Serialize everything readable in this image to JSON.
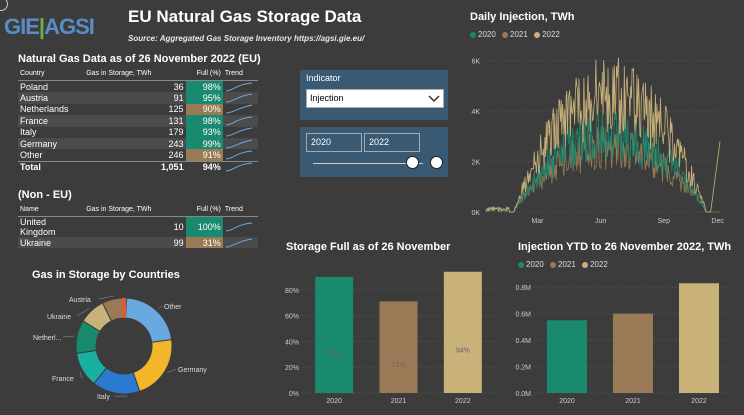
{
  "header": {
    "logo": "GIE AGSI",
    "logo_left": "GIE",
    "logo_sep": "|",
    "logo_right": "AGSI",
    "title": "EU Natural Gas Storage Data",
    "subtitle": "Source: Aggregated Gas Storage Inventory https://agsi.gie.eu/"
  },
  "eu_table": {
    "title": "Natural Gas Data as of 26 November 2022 (EU)",
    "headers": {
      "country": "Country",
      "gas": "Gas in Storage, TWh",
      "full": "Full (%)",
      "trend": "Trend"
    },
    "rows": [
      {
        "country": "Poland",
        "gas": "36",
        "full": "98%",
        "fullv": 98
      },
      {
        "country": "Austria",
        "gas": "91",
        "full": "95%",
        "fullv": 95
      },
      {
        "country": "Netherlands",
        "gas": "125",
        "full": "90%",
        "fullv": 90
      },
      {
        "country": "France",
        "gas": "131",
        "full": "98%",
        "fullv": 98
      },
      {
        "country": "Italy",
        "gas": "179",
        "full": "93%",
        "fullv": 93
      },
      {
        "country": "Germany",
        "gas": "243",
        "full": "99%",
        "fullv": 99
      },
      {
        "country": "Other",
        "gas": "246",
        "full": "91%",
        "fullv": 91
      }
    ],
    "total": {
      "label": "Total",
      "gas": "1,051",
      "full": "94%"
    }
  },
  "noneu_table": {
    "title": "(Non - EU)",
    "headers": {
      "name": "Name",
      "gas": "Gas in Storage, TWh",
      "full": "Full (%)",
      "trend": "Trend"
    },
    "rows": [
      {
        "country": "United Kingdom",
        "gas": "10",
        "full": "100%",
        "fullv": 100
      },
      {
        "country": "Ukraine",
        "gas": "99",
        "full": "31%",
        "fullv": 31
      }
    ]
  },
  "colors": {
    "green": "#1a8a6e",
    "brown": "#9a7a56",
    "tan": "#c9b27a",
    "slicer_bg": "#3a5a73"
  },
  "indicator": {
    "label": "Indicator",
    "value": "Injection"
  },
  "year_slicer": {
    "from": "2020",
    "to": "2022"
  },
  "chart_data": [
    {
      "type": "line",
      "title": "Daily Injection, TWh",
      "series": [
        {
          "name": "2020"
        },
        {
          "name": "2021"
        },
        {
          "name": "2022"
        }
      ],
      "x_ticks": [
        "Mar",
        "Jun",
        "Sep",
        "Dec"
      ],
      "y_ticks": [
        "0K",
        "2K",
        "4K",
        "6K"
      ],
      "ylim": [
        0,
        6500
      ]
    },
    {
      "type": "pie",
      "title": "Gas in Storage by Countries",
      "categories": [
        "Other",
        "Germany",
        "Italy",
        "France",
        "Netherl...",
        "Ukraine",
        "Austria"
      ],
      "values": [
        246,
        243,
        179,
        131,
        125,
        99,
        91
      ],
      "colors": [
        "#6aa9e0",
        "#f2b62a",
        "#2a7ad1",
        "#18b0a0",
        "#1a8a6e",
        "#c9b27a",
        "#9a7a56"
      ]
    },
    {
      "type": "bar",
      "title": "Storage Full as of 26 November",
      "categories": [
        "2020",
        "2021",
        "2022"
      ],
      "values": [
        90,
        71,
        94
      ],
      "labels": [
        "90%",
        "71%",
        "94%"
      ],
      "y_ticks": [
        "0%",
        "20%",
        "40%",
        "60%",
        "80%"
      ],
      "ylim": [
        0,
        100
      ]
    },
    {
      "type": "bar",
      "title": "Injection YTD to 26 November 2022, TWh",
      "series": [
        {
          "name": "2020"
        },
        {
          "name": "2021"
        },
        {
          "name": "2022"
        }
      ],
      "categories": [
        "2020",
        "2021",
        "2022"
      ],
      "values": [
        0.55,
        0.6,
        0.83
      ],
      "y_ticks": [
        "0.0M",
        "0.2M",
        "0.4M",
        "0.6M",
        "0.8M"
      ],
      "ylim": [
        0,
        0.9
      ]
    }
  ]
}
